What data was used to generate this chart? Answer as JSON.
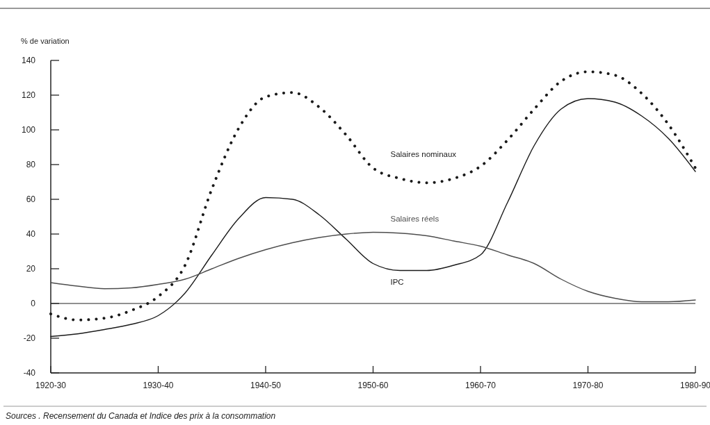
{
  "chart_data": {
    "type": "line",
    "ylabel": "% de variation",
    "categories": [
      "1920-30",
      null,
      null,
      null,
      "1930-40",
      null,
      null,
      null,
      "1940-50",
      null,
      null,
      null,
      "1950-60",
      null,
      null,
      null,
      "1960-70",
      null,
      null,
      null,
      "1970-80",
      null,
      null,
      null,
      "1980-90"
    ],
    "ylim": [
      -40,
      140
    ],
    "yticks": [
      -40,
      -20,
      0,
      20,
      40,
      60,
      80,
      100,
      120,
      140
    ],
    "grid": false,
    "ref_lines": [
      {
        "axis": "y",
        "value": 0,
        "color": "#222222"
      }
    ],
    "series": [
      {
        "name": "Salaires nominaux",
        "color": "#1a1a1a",
        "line_style": "dotted",
        "values": [
          -6,
          -9.5,
          -8.5,
          -4,
          4,
          22,
          66,
          101,
          119,
          121.5,
          113,
          97,
          78,
          72,
          69.5,
          72,
          79,
          94,
          112,
          128,
          133.5,
          131.5,
          121,
          103,
          78
        ]
      },
      {
        "name": "IPC",
        "color": "#1a1a1a",
        "line_style": "solid",
        "values": [
          -19,
          -17.5,
          -15,
          -12,
          -7,
          6,
          28,
          49,
          61,
          60,
          51,
          37,
          23,
          19,
          19,
          22,
          28,
          58,
          91,
          112,
          118,
          116,
          108,
          95,
          76
        ]
      },
      {
        "name": "Salaires réels",
        "color": "#4d4d4d",
        "line_style": "solid",
        "values": [
          12,
          10,
          8.5,
          9,
          11,
          14,
          20,
          26,
          31,
          35,
          38,
          40,
          41,
          40.5,
          39,
          36,
          33,
          28,
          23,
          14,
          7,
          3,
          1,
          1,
          2
        ]
      }
    ],
    "annotations": [
      "Sources .  Recensement du Canada et Indice des prix à la consommation"
    ]
  }
}
